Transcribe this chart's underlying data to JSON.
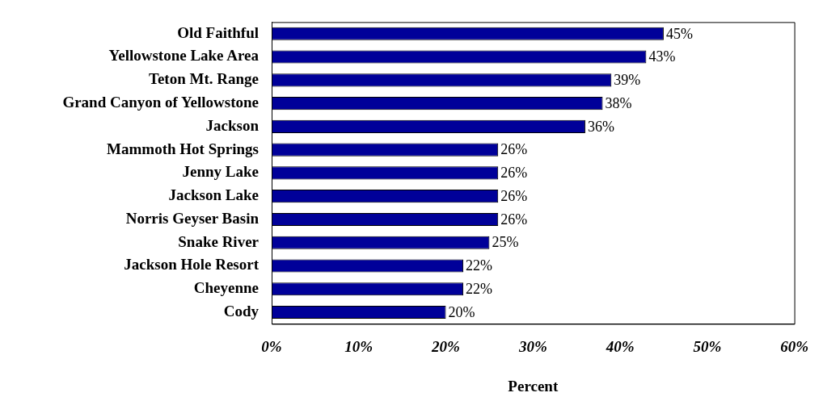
{
  "chart_data": {
    "type": "bar",
    "orientation": "horizontal",
    "xlabel": "Percent",
    "categories": [
      "Old Faithful",
      "Yellowstone Lake Area",
      "Teton Mt. Range",
      "Grand Canyon of Yellowstone",
      "Jackson",
      "Mammoth Hot Springs",
      "Jenny Lake",
      "Jackson Lake",
      "Norris Geyser Basin",
      "Snake River",
      "Jackson Hole Resort",
      "Cheyenne",
      "Cody"
    ],
    "values": [
      45,
      43,
      39,
      38,
      36,
      26,
      26,
      26,
      26,
      25,
      22,
      22,
      20
    ],
    "value_labels": [
      "45%",
      "43%",
      "39%",
      "38%",
      "36%",
      "26%",
      "26%",
      "26%",
      "26%",
      "25%",
      "22%",
      "22%",
      "20%"
    ],
    "color": "#000099",
    "xlim": [
      0,
      60
    ],
    "xticks": [
      {
        "value": 0,
        "label": "0%"
      },
      {
        "value": 10,
        "label": "10%"
      },
      {
        "value": 20,
        "label": "20%"
      },
      {
        "value": 30,
        "label": "30%"
      },
      {
        "value": 40,
        "label": "40%"
      },
      {
        "value": 50,
        "label": "50%"
      },
      {
        "value": 60,
        "label": "60%"
      }
    ],
    "grid": false,
    "legend": false
  }
}
